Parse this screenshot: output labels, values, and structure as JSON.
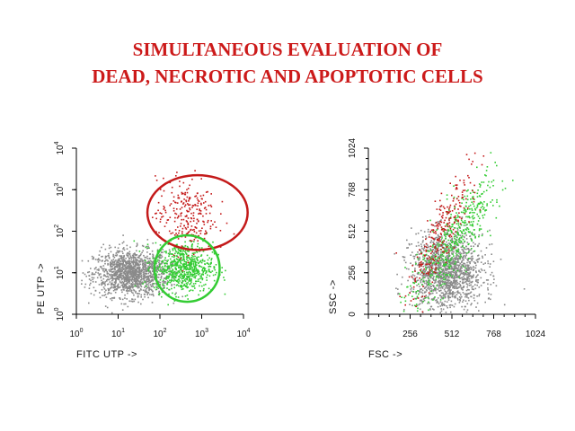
{
  "title": {
    "line1": "SIMULTANEOUS EVALUATION OF",
    "line2": "DEAD, NECROTIC AND APOPTOTIC CELLS"
  },
  "colors": {
    "title": "#cc1a1a",
    "gray_population": "#8a8a8a",
    "red_population": "#c41a1a",
    "green_population": "#33cc33"
  },
  "chart_data": [
    {
      "type": "scatter",
      "xlabel": "FITC UTP ->",
      "ylabel": "PE UTP ->",
      "x_scale": "log",
      "y_scale": "log",
      "xlim": [
        1,
        10000
      ],
      "ylim": [
        1,
        10000
      ],
      "x_ticks": [
        {
          "base": "10",
          "exp": "0"
        },
        {
          "base": "10",
          "exp": "1"
        },
        {
          "base": "10",
          "exp": "2"
        },
        {
          "base": "10",
          "exp": "3"
        },
        {
          "base": "10",
          "exp": "4"
        }
      ],
      "y_ticks": [
        {
          "base": "10",
          "exp": "0"
        },
        {
          "base": "10",
          "exp": "1"
        },
        {
          "base": "10",
          "exp": "2"
        },
        {
          "base": "10",
          "exp": "3"
        },
        {
          "base": "10",
          "exp": "4"
        }
      ],
      "populations": [
        {
          "color": "gray",
          "center_log": [
            1.3,
            1.0
          ],
          "spread_log": [
            0.45,
            0.28
          ],
          "approx_events": 1400
        },
        {
          "color": "green",
          "center_log": [
            2.55,
            1.15
          ],
          "spread_log": [
            0.35,
            0.3
          ],
          "approx_events": 700
        },
        {
          "color": "red",
          "center_log": [
            2.6,
            2.4
          ],
          "spread_log": [
            0.35,
            0.45
          ],
          "approx_events": 260
        }
      ],
      "gates": [
        {
          "color": "red",
          "center_log": [
            2.9,
            2.45
          ],
          "radius_log": [
            1.2,
            0.9
          ]
        },
        {
          "color": "green",
          "center_log": [
            2.65,
            1.1
          ],
          "radius_log": [
            0.78,
            0.8
          ]
        }
      ]
    },
    {
      "type": "scatter",
      "xlabel": "FSC ->",
      "ylabel": "SSC ->",
      "x_scale": "linear",
      "y_scale": "linear",
      "xlim": [
        0,
        1024
      ],
      "ylim": [
        0,
        1024
      ],
      "x_ticks": [
        "0",
        "256",
        "512",
        "768",
        "1024"
      ],
      "y_ticks": [
        "0",
        "256",
        "512",
        "768",
        "1024"
      ],
      "populations": [
        {
          "color": "gray",
          "center": [
            480,
            270
          ],
          "spread": [
            110,
            120
          ],
          "approx_events": 1500
        },
        {
          "color": "green",
          "center": [
            520,
            460
          ],
          "spread": [
            150,
            230
          ],
          "approx_events": 500
        },
        {
          "color": "red",
          "center": [
            440,
            500
          ],
          "spread": [
            110,
            220
          ],
          "approx_events": 250
        }
      ]
    }
  ]
}
